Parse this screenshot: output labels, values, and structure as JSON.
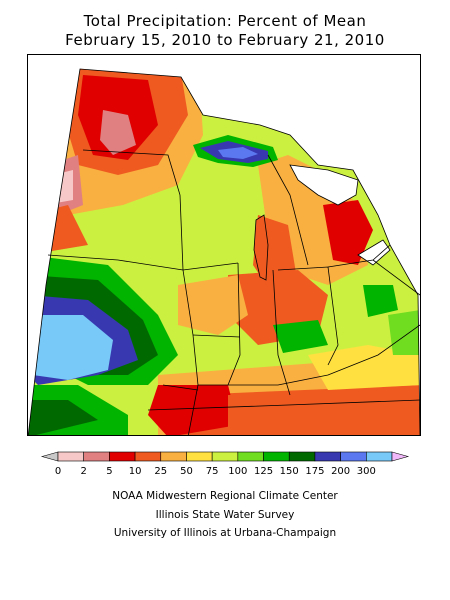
{
  "title_line1": "Total Precipitation: Percent of Mean",
  "title_line2": "February 15, 2010 to February 21, 2010",
  "legend": {
    "tick_labels": [
      "0",
      "2",
      "5",
      "10",
      "25",
      "50",
      "75",
      "100",
      "125",
      "150",
      "175",
      "200",
      "300"
    ],
    "colors": [
      "#c8c8c8",
      "#f7c8c8",
      "#e08080",
      "#e00000",
      "#ee5a20",
      "#f9b040",
      "#ffe040",
      "#ccf040",
      "#70dd20",
      "#00b400",
      "#006a00",
      "#3838b0",
      "#5c78f0",
      "#78c8f8",
      "#f0b8f8"
    ]
  },
  "credits": [
    "NOAA Midwestern Regional Climate Center",
    "Illinois State Water Survey",
    "University of Illinois at Urbana-Champaign"
  ]
}
